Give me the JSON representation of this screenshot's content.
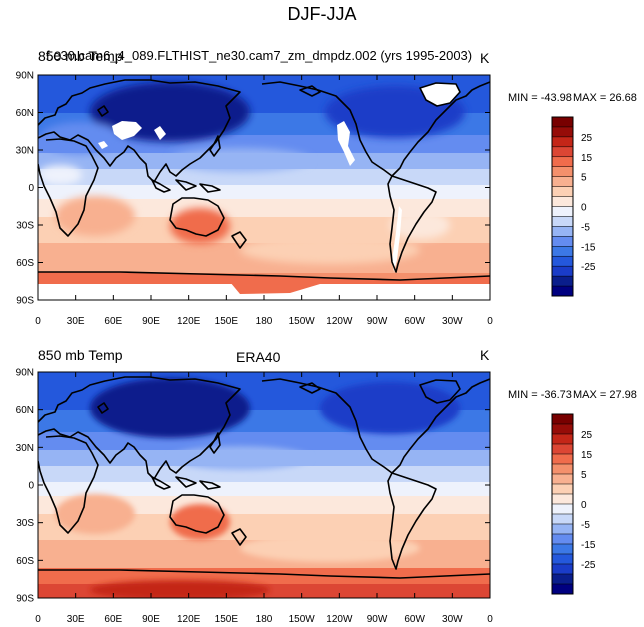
{
  "figure_title": "DJF-JJA",
  "colors": {
    "levels": [
      "#000080",
      "#0a1e8c",
      "#1a3cc8",
      "#2458dc",
      "#3c78e6",
      "#648cf0",
      "#96b4f4",
      "#c8d8f8",
      "#eef2fc",
      "#fce8dc",
      "#fcd0b4",
      "#f8b090",
      "#f4906c",
      "#f06c4c",
      "#dc4634",
      "#c42618",
      "#960c08",
      "#780000"
    ],
    "missing": "#ffffff"
  },
  "chart_data": [
    {
      "type": "heatmap",
      "center_title": "",
      "left_title": "850 mb Temp",
      "overlay_title": "f.e30.cam6_4_089.FLTHIST_ne30.cam7_zm_dmpdz.002 (yrs 1995-2003)",
      "units": "K",
      "min_label": "MIN = -43.98",
      "max_label": "MAX =  26.68",
      "y_ticks": [
        "90N",
        "60N",
        "30N",
        "0",
        "30S",
        "60S",
        "90S"
      ],
      "x_ticks": [
        "0",
        "30E",
        "60E",
        "90E",
        "120E",
        "150E",
        "180",
        "150W",
        "120W",
        "90W",
        "60W",
        "30W",
        "0"
      ],
      "colorbar_labels": [
        "25",
        "15",
        "5",
        "0",
        "-5",
        "-15",
        "-25"
      ]
    },
    {
      "type": "heatmap",
      "center_title": "ERA40",
      "left_title": "850 mb Temp",
      "overlay_title": "",
      "units": "K",
      "min_label": "MIN = -36.73",
      "max_label": "MAX =  27.98",
      "y_ticks": [
        "90N",
        "60N",
        "30N",
        "0",
        "30S",
        "60S",
        "90S"
      ],
      "x_ticks": [
        "0",
        "30E",
        "60E",
        "90E",
        "120E",
        "150E",
        "180",
        "150W",
        "120W",
        "90W",
        "60W",
        "30W",
        "0"
      ],
      "colorbar_labels": [
        "25",
        "15",
        "5",
        "0",
        "-5",
        "-15",
        "-25"
      ]
    }
  ]
}
